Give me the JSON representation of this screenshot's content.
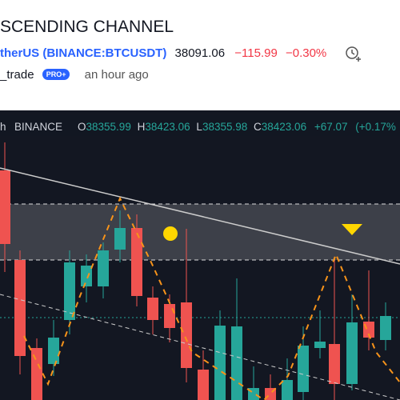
{
  "header": {
    "title": "SCENDING CHANNEL",
    "symbol": "therUS",
    "exchange_symbol": "(BINANCE:BTCUSDT)",
    "price": "38091.06",
    "change": "−115.99",
    "change_percent": "−0.30%"
  },
  "author": {
    "name": "_trade",
    "badge": "PRO+",
    "time": "an hour ago"
  },
  "chart": {
    "legend": {
      "interval": "h",
      "exchange": "BINANCE",
      "o_label": "O",
      "o": "38355.99",
      "h_label": "H",
      "h": "38423.06",
      "l_label": "L",
      "l": "38355.98",
      "c_label": "C",
      "c": "38423.06",
      "change": "+67.07",
      "change_percent": "(+0.17%"
    }
  }
}
